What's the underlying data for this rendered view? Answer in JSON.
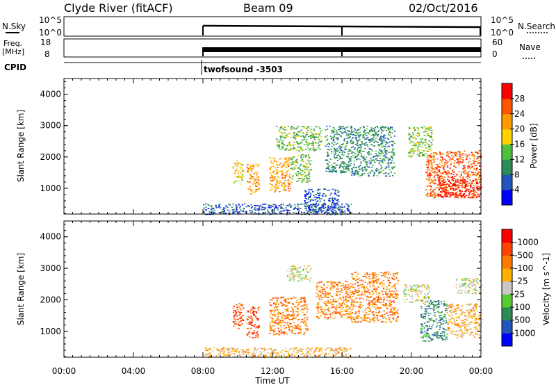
{
  "header": {
    "station": "Clyde River (fitACF)",
    "beam": "Beam 09",
    "date": "02/Oct/2016"
  },
  "params": {
    "nsky_label": "N.Sky",
    "nsky_ticks": [
      "10^5",
      "10^0"
    ],
    "nsearch_label": "N.Search",
    "nsearch_ticks": [
      "10^5",
      "10^0"
    ],
    "freq_label": "Freq.",
    "freq_unit": "[MHz]",
    "freq_ticks": [
      "18",
      "8"
    ],
    "nave_label": "Nave",
    "nave_ticks": [
      "60",
      "0"
    ],
    "cpid_label": "CPID",
    "cpid_value": "twofsound -3503",
    "data_start": "08:00",
    "data_end": "00:00",
    "gap_at": "16:00"
  },
  "chart_data": [
    {
      "type": "heatmap",
      "title": "",
      "xlabel": "",
      "ylabel": "Slant Range [km]",
      "x_ticks": [
        "00:00",
        "04:00",
        "08:00",
        "12:00",
        "16:00",
        "20:00",
        "00:00"
      ],
      "y_ticks": [
        "1000",
        "2000",
        "3000",
        "4000"
      ],
      "ylim": [
        180,
        4500
      ],
      "colorbar": {
        "label": "Power [dB]",
        "ticks": [
          "4",
          "8",
          "12",
          "16",
          "20",
          "24",
          "28"
        ],
        "colors": [
          "#0000ff",
          "#2255bb",
          "#2e8b57",
          "#4fc040",
          "#ffd200",
          "#ff9900",
          "#ff5500",
          "#ff0000"
        ]
      },
      "patches": [
        {
          "t0": 9.7,
          "t1": 10.3,
          "r0": 1150,
          "r1": 1900,
          "level": 4
        },
        {
          "t0": 10.5,
          "t1": 11.2,
          "r0": 800,
          "r1": 1800,
          "level": 5
        },
        {
          "t0": 11.8,
          "t1": 13.0,
          "r0": 900,
          "r1": 2000,
          "level": 5
        },
        {
          "t0": 12.2,
          "t1": 14.8,
          "r0": 2200,
          "r1": 3000,
          "level": 3
        },
        {
          "t0": 13.0,
          "t1": 14.2,
          "r0": 1200,
          "r1": 2100,
          "level": 3
        },
        {
          "t0": 15.0,
          "t1": 16.4,
          "r0": 1500,
          "r1": 3000,
          "level": 2
        },
        {
          "t0": 16.4,
          "t1": 19.0,
          "r0": 1400,
          "r1": 3000,
          "level": 2
        },
        {
          "t0": 19.8,
          "t1": 21.2,
          "r0": 2000,
          "r1": 3000,
          "level": 3
        },
        {
          "t0": 20.8,
          "t1": 24.0,
          "r0": 700,
          "r1": 2200,
          "level": 6
        },
        {
          "t0": 21.5,
          "t1": 23.8,
          "r0": 700,
          "r1": 1300,
          "level": 7
        },
        {
          "t0": 8.0,
          "t1": 16.5,
          "r0": 180,
          "r1": 520,
          "level": 1
        },
        {
          "t0": 13.8,
          "t1": 15.8,
          "r0": 250,
          "r1": 1000,
          "level": 1
        }
      ]
    },
    {
      "type": "heatmap",
      "title": "",
      "xlabel": "Time UT",
      "ylabel": "Slant Range [km]",
      "x_ticks": [
        "00:00",
        "04:00",
        "08:00",
        "12:00",
        "16:00",
        "20:00",
        "00:00"
      ],
      "y_ticks": [
        "1000",
        "2000",
        "3000",
        "4000"
      ],
      "ylim": [
        180,
        4500
      ],
      "colorbar": {
        "label": "Velocity [m s^-1]",
        "ticks": [
          "1000",
          "500",
          "100",
          "25",
          "-25",
          "-100",
          "-500",
          "-1000"
        ],
        "colors": [
          "#0000ff",
          "#2255bb",
          "#2e8b57",
          "#55cc33",
          "#c8c8c8",
          "#ffb000",
          "#ff7a00",
          "#ff4400",
          "#ff0000"
        ]
      },
      "patches": [
        {
          "t0": 9.7,
          "t1": 10.3,
          "r0": 1100,
          "r1": 1900,
          "level": 7
        },
        {
          "t0": 10.5,
          "t1": 11.2,
          "r0": 800,
          "r1": 1800,
          "level": 7
        },
        {
          "t0": 11.8,
          "t1": 14.0,
          "r0": 900,
          "r1": 2100,
          "level": 6
        },
        {
          "t0": 12.8,
          "t1": 14.2,
          "r0": 2600,
          "r1": 3100,
          "level": 4
        },
        {
          "t0": 14.5,
          "t1": 16.5,
          "r0": 1400,
          "r1": 2600,
          "level": 6
        },
        {
          "t0": 16.5,
          "t1": 19.2,
          "r0": 1300,
          "r1": 2900,
          "level": 6
        },
        {
          "t0": 19.5,
          "t1": 21.0,
          "r0": 1900,
          "r1": 2500,
          "level": 4
        },
        {
          "t0": 20.5,
          "t1": 22.0,
          "r0": 700,
          "r1": 2000,
          "level": 2
        },
        {
          "t0": 22.0,
          "t1": 24.0,
          "r0": 800,
          "r1": 1900,
          "level": 5
        },
        {
          "t0": 22.5,
          "t1": 24.0,
          "r0": 2200,
          "r1": 2700,
          "level": 4
        },
        {
          "t0": 8.0,
          "t1": 16.5,
          "r0": 180,
          "r1": 500,
          "level": 5
        }
      ]
    }
  ]
}
